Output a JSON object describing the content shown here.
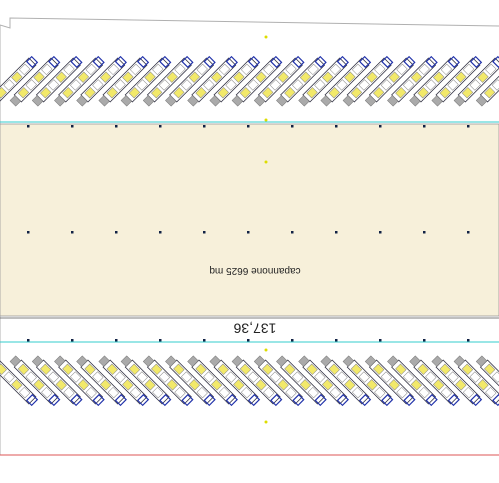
{
  "building": {
    "label": "capannone 6625 mq"
  },
  "dimension": {
    "label": "137,36"
  }
}
